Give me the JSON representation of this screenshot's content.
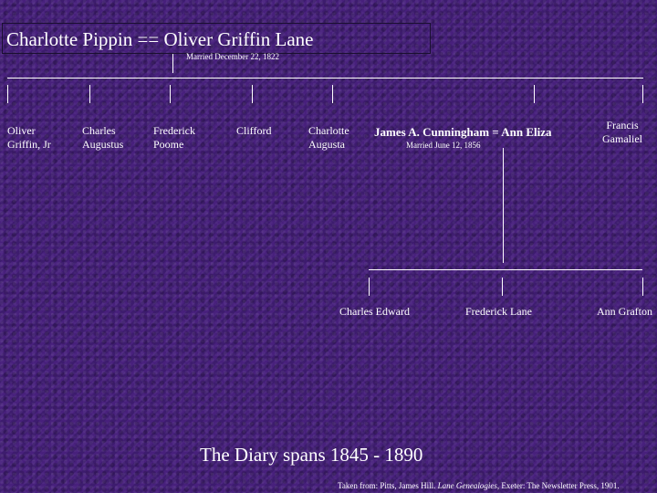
{
  "title": {
    "husband": "Oliver Griffin Lane",
    "wife": "Charlotte Pippin",
    "connector": "==",
    "married": "Married December 22, 1822"
  },
  "children": [
    {
      "line1": "Oliver",
      "line2": "Griffin, Jr"
    },
    {
      "line1": "Charles",
      "line2": "Augustus"
    },
    {
      "line1": "Frederick",
      "line2": "Poome"
    },
    {
      "line1": "Clifford",
      "line2": ""
    },
    {
      "line1": "Charlotte",
      "line2": "Augusta"
    },
    {
      "line1": "Francis",
      "line2": "Gamaliel"
    }
  ],
  "second_couple": {
    "text": "James A. Cunningham = Ann Eliza",
    "married": "Married June 12, 1856"
  },
  "grandchildren": [
    "Charles Edward",
    "Frederick Lane",
    "Ann Grafton"
  ],
  "footer": {
    "diary": "The Diary spans 1845 - 1890",
    "credit_prefix": "Taken from: Pitts, James Hill.",
    "credit_title": "Lane Genealogies",
    "credit_suffix": ", Exeter: The Newsletter Press, 1901."
  }
}
